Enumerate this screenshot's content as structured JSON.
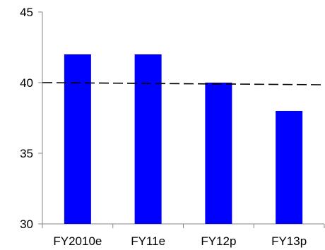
{
  "chart_data": {
    "type": "bar",
    "categories": [
      "FY2010e",
      "FY11e",
      "FY12p",
      "FY13p"
    ],
    "values": [
      42,
      42,
      40,
      38
    ],
    "title": "",
    "xlabel": "",
    "ylabel": "",
    "ylim": [
      30,
      45
    ],
    "yticks": [
      30,
      35,
      40,
      45
    ],
    "reference_line": {
      "value": 40,
      "style": "dashed",
      "color": "#000000"
    },
    "bar_color": "#0000FF",
    "grid": false,
    "legend": "none"
  }
}
